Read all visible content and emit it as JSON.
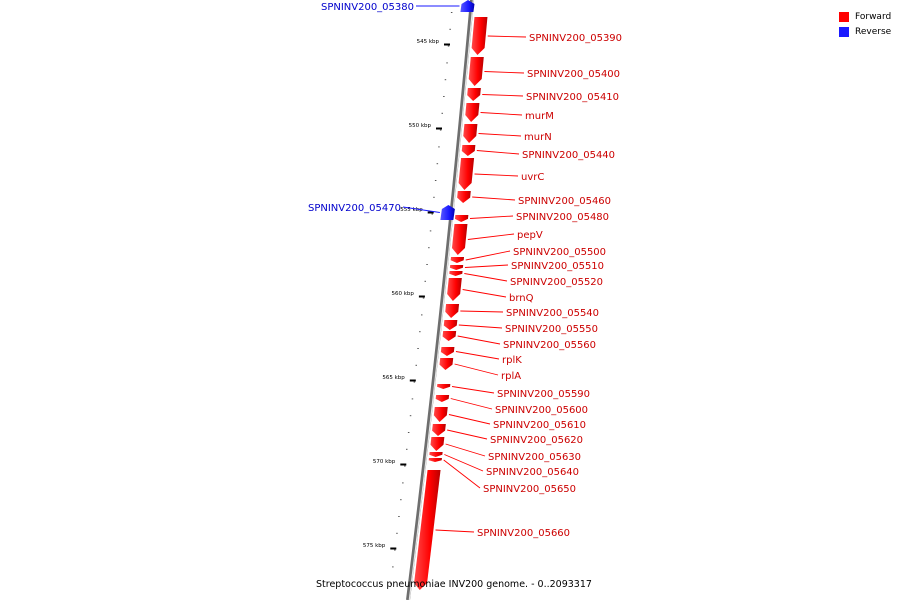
{
  "colors": {
    "forward": "#ff0000",
    "reverse": "#1a1aff",
    "forward_label": "#cc0000",
    "reverse_label": "#0000cc"
  },
  "legend": {
    "forward": "Forward",
    "reverse": "Reverse"
  },
  "caption": "Streptococcus pneumoniae INV200 genome. - 0..2093317",
  "ticks": [
    "545 kbp",
    "550 kbp",
    "555 kbp",
    "560 kbp",
    "565 kbp",
    "570 kbp",
    "575 kbp"
  ],
  "genes_reverse": [
    "SPNINV200_05380",
    "SPNINV200_05470"
  ],
  "genes_forward": [
    "SPNINV200_05390",
    "SPNINV200_05400",
    "SPNINV200_05410",
    "murM",
    "murN",
    "SPNINV200_05440",
    "uvrC",
    "SPNINV200_05460",
    "SPNINV200_05480",
    "pepV",
    "SPNINV200_05500",
    "SPNINV200_05510",
    "SPNINV200_05520",
    "brnQ",
    "SPNINV200_05540",
    "SPNINV200_05550",
    "SPNINV200_05560",
    "rplK",
    "rplA",
    "SPNINV200_05590",
    "SPNINV200_05600",
    "SPNINV200_05610",
    "SPNINV200_05620",
    "SPNINV200_05630",
    "SPNINV200_05640",
    "SPNINV200_05650",
    "SPNINV200_05660"
  ]
}
